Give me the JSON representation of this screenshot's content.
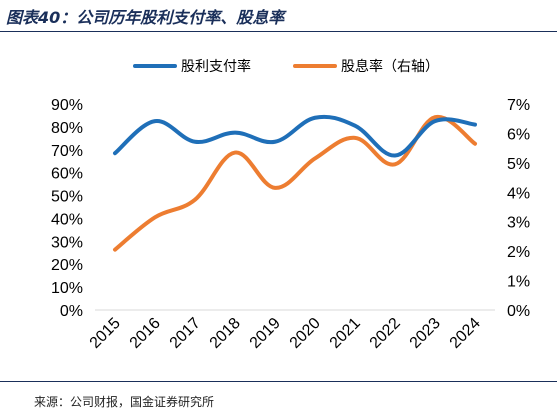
{
  "header": {
    "title": "图表40：公司历年股利支付率、股息率"
  },
  "footer": {
    "source": "来源：公司财报，国金证券研究所"
  },
  "chart_data": {
    "type": "line",
    "categories": [
      "2015",
      "2016",
      "2017",
      "2018",
      "2019",
      "2020",
      "2021",
      "2022",
      "2023",
      "2024"
    ],
    "series": [
      {
        "name": "股利支付率",
        "axis": "left",
        "color": "#1f6fb8",
        "values": [
          68.5,
          82.5,
          73.5,
          77.5,
          73.5,
          84.0,
          80.5,
          67.5,
          82.5,
          81.0
        ]
      },
      {
        "name": "股息率（右轴）",
        "axis": "right",
        "color": "#ed7d31",
        "values": [
          2.05,
          3.15,
          3.75,
          5.35,
          4.15,
          5.15,
          5.85,
          4.95,
          6.55,
          5.65
        ]
      }
    ],
    "y_left": {
      "min": 0,
      "max": 90,
      "step": 10,
      "format": "percent",
      "ticks": [
        "0%",
        "10%",
        "20%",
        "30%",
        "40%",
        "50%",
        "60%",
        "70%",
        "80%",
        "90%"
      ]
    },
    "y_right": {
      "min": 0,
      "max": 7,
      "step": 1,
      "format": "percent",
      "ticks": [
        "0%",
        "1%",
        "2%",
        "3%",
        "4%",
        "5%",
        "6%",
        "7%"
      ]
    },
    "legend_position": "top",
    "grid": false,
    "smooth": true
  }
}
